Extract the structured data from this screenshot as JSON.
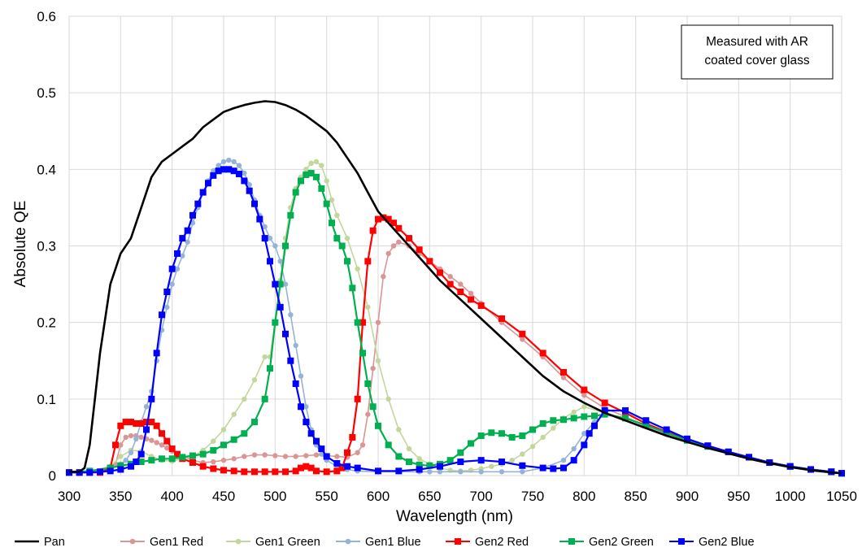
{
  "chart_data": {
    "type": "line",
    "title": "",
    "xlabel": "Wavelength (nm)",
    "ylabel": "Absolute QE",
    "xlim": [
      300,
      1050
    ],
    "ylim": [
      0,
      0.6
    ],
    "x_ticks": [
      300,
      350,
      400,
      450,
      500,
      550,
      600,
      650,
      700,
      750,
      800,
      850,
      900,
      950,
      1000,
      1050
    ],
    "x_tick_labels": [
      "300",
      "350",
      "400",
      "450",
      "500",
      "550",
      "600",
      "650",
      "700",
      "750",
      "800",
      "850",
      "900",
      "950",
      "1000",
      "1050"
    ],
    "y_ticks": [
      0,
      0.1,
      0.2,
      0.3,
      0.4,
      0.5,
      0.6
    ],
    "y_tick_labels": [
      "0",
      "0.1",
      "0.2",
      "0.3",
      "0.4",
      "0.5",
      "0.6"
    ],
    "grid": true,
    "legend_position": "bottom",
    "annotation": [
      "Measured with AR",
      "coated cover glass"
    ],
    "series": [
      {
        "name": "Pan",
        "color": "#000000",
        "marker": "none",
        "x": [
          300,
          305,
          310,
          315,
          320,
          325,
          330,
          340,
          345,
          350,
          360,
          370,
          380,
          390,
          400,
          410,
          420,
          430,
          440,
          450,
          460,
          470,
          480,
          490,
          500,
          510,
          520,
          530,
          540,
          550,
          560,
          570,
          580,
          590,
          600,
          620,
          640,
          660,
          680,
          700,
          720,
          740,
          760,
          780,
          800,
          820,
          840,
          860,
          880,
          900,
          920,
          940,
          960,
          980,
          1000,
          1020,
          1040,
          1050
        ],
        "y": [
          0.005,
          0.005,
          0.005,
          0.01,
          0.04,
          0.1,
          0.16,
          0.25,
          0.27,
          0.29,
          0.31,
          0.35,
          0.39,
          0.41,
          0.42,
          0.43,
          0.44,
          0.455,
          0.465,
          0.475,
          0.48,
          0.484,
          0.487,
          0.489,
          0.488,
          0.484,
          0.478,
          0.47,
          0.46,
          0.45,
          0.435,
          0.415,
          0.395,
          0.37,
          0.345,
          0.315,
          0.285,
          0.255,
          0.23,
          0.205,
          0.18,
          0.155,
          0.13,
          0.11,
          0.095,
          0.082,
          0.072,
          0.062,
          0.052,
          0.044,
          0.036,
          0.029,
          0.022,
          0.016,
          0.011,
          0.007,
          0.004,
          0.003
        ]
      },
      {
        "name": "Gen1 Red",
        "color": "#d99694",
        "marker": "circle",
        "x": [
          300,
          310,
          320,
          330,
          340,
          345,
          350,
          355,
          360,
          365,
          370,
          375,
          380,
          385,
          390,
          395,
          400,
          410,
          420,
          430,
          440,
          450,
          460,
          470,
          480,
          490,
          500,
          510,
          520,
          530,
          540,
          550,
          560,
          570,
          580,
          585,
          590,
          595,
          600,
          605,
          610,
          615,
          620,
          630,
          640,
          650,
          660,
          670,
          680,
          690,
          700,
          720,
          740,
          760,
          780,
          800,
          820,
          840,
          860,
          880,
          900,
          920,
          940,
          960,
          980,
          1000,
          1020,
          1040,
          1050
        ],
        "y": [
          0.004,
          0.004,
          0.004,
          0.004,
          0.006,
          0.015,
          0.04,
          0.05,
          0.052,
          0.052,
          0.05,
          0.048,
          0.046,
          0.043,
          0.04,
          0.036,
          0.032,
          0.025,
          0.02,
          0.017,
          0.018,
          0.02,
          0.022,
          0.025,
          0.027,
          0.027,
          0.026,
          0.025,
          0.025,
          0.026,
          0.027,
          0.026,
          0.025,
          0.024,
          0.03,
          0.04,
          0.08,
          0.14,
          0.2,
          0.26,
          0.29,
          0.3,
          0.305,
          0.3,
          0.29,
          0.28,
          0.27,
          0.26,
          0.25,
          0.238,
          0.225,
          0.2,
          0.178,
          0.155,
          0.128,
          0.105,
          0.088,
          0.077,
          0.064,
          0.054,
          0.045,
          0.037,
          0.03,
          0.023,
          0.016,
          0.011,
          0.007,
          0.004,
          0.003
        ]
      },
      {
        "name": "Gen1 Green",
        "color": "#c3d69b",
        "marker": "circle",
        "x": [
          300,
          320,
          340,
          350,
          360,
          370,
          380,
          390,
          400,
          410,
          420,
          430,
          440,
          450,
          460,
          470,
          480,
          490,
          495,
          500,
          505,
          510,
          515,
          520,
          525,
          530,
          535,
          540,
          545,
          550,
          555,
          560,
          570,
          580,
          590,
          600,
          610,
          620,
          630,
          640,
          650,
          660,
          670,
          680,
          690,
          700,
          710,
          720,
          730,
          740,
          750,
          760,
          770,
          780,
          790,
          800,
          820,
          840,
          860,
          880,
          900,
          920,
          940,
          960,
          980,
          1000,
          1020,
          1040,
          1050
        ],
        "y": [
          0.004,
          0.006,
          0.012,
          0.025,
          0.033,
          0.032,
          0.025,
          0.02,
          0.019,
          0.022,
          0.025,
          0.033,
          0.045,
          0.06,
          0.08,
          0.1,
          0.125,
          0.155,
          0.155,
          0.2,
          0.255,
          0.31,
          0.35,
          0.375,
          0.39,
          0.4,
          0.408,
          0.41,
          0.405,
          0.385,
          0.36,
          0.34,
          0.31,
          0.27,
          0.22,
          0.15,
          0.1,
          0.06,
          0.035,
          0.022,
          0.015,
          0.01,
          0.007,
          0.006,
          0.007,
          0.009,
          0.012,
          0.015,
          0.02,
          0.028,
          0.038,
          0.05,
          0.062,
          0.075,
          0.083,
          0.09,
          0.082,
          0.075,
          0.065,
          0.055,
          0.046,
          0.038,
          0.03,
          0.023,
          0.016,
          0.011,
          0.007,
          0.004,
          0.003
        ]
      },
      {
        "name": "Gen1 Blue",
        "color": "#95b3d7",
        "marker": "circle",
        "x": [
          300,
          320,
          340,
          350,
          355,
          360,
          365,
          370,
          375,
          380,
          385,
          390,
          395,
          400,
          405,
          410,
          415,
          420,
          425,
          430,
          435,
          440,
          445,
          450,
          455,
          460,
          465,
          470,
          475,
          480,
          485,
          490,
          495,
          500,
          505,
          510,
          515,
          520,
          525,
          530,
          535,
          540,
          545,
          550,
          560,
          570,
          580,
          600,
          620,
          640,
          650,
          660,
          680,
          700,
          720,
          740,
          760,
          780,
          790,
          800,
          810,
          820,
          840,
          860,
          880,
          900,
          920,
          940,
          960,
          980,
          1000,
          1020,
          1040,
          1050
        ],
        "y": [
          0.004,
          0.006,
          0.01,
          0.015,
          0.02,
          0.03,
          0.048,
          0.07,
          0.09,
          0.11,
          0.15,
          0.19,
          0.22,
          0.25,
          0.27,
          0.287,
          0.305,
          0.33,
          0.35,
          0.37,
          0.385,
          0.398,
          0.405,
          0.41,
          0.412,
          0.41,
          0.405,
          0.395,
          0.38,
          0.36,
          0.34,
          0.325,
          0.31,
          0.3,
          0.28,
          0.25,
          0.21,
          0.17,
          0.13,
          0.09,
          0.06,
          0.04,
          0.028,
          0.02,
          0.012,
          0.008,
          0.006,
          0.005,
          0.005,
          0.005,
          0.005,
          0.005,
          0.005,
          0.005,
          0.005,
          0.005,
          0.01,
          0.02,
          0.035,
          0.055,
          0.07,
          0.08,
          0.075,
          0.065,
          0.055,
          0.046,
          0.038,
          0.03,
          0.023,
          0.016,
          0.011,
          0.007,
          0.004,
          0.003
        ]
      },
      {
        "name": "Gen2 Red",
        "color": "#ff0000",
        "marker": "square",
        "x": [
          300,
          310,
          320,
          330,
          340,
          345,
          350,
          355,
          360,
          365,
          370,
          375,
          380,
          385,
          390,
          395,
          400,
          405,
          410,
          420,
          430,
          440,
          450,
          460,
          470,
          480,
          490,
          500,
          510,
          520,
          525,
          530,
          535,
          540,
          550,
          560,
          565,
          570,
          575,
          580,
          585,
          590,
          595,
          600,
          605,
          610,
          615,
          620,
          630,
          640,
          650,
          660,
          670,
          680,
          690,
          700,
          720,
          740,
          760,
          780,
          800,
          820,
          840,
          860,
          880,
          900,
          920,
          940,
          960,
          980,
          1000,
          1020,
          1040,
          1050
        ],
        "y": [
          0.004,
          0.004,
          0.004,
          0.004,
          0.01,
          0.04,
          0.065,
          0.07,
          0.07,
          0.068,
          0.068,
          0.07,
          0.07,
          0.065,
          0.055,
          0.045,
          0.035,
          0.028,
          0.022,
          0.017,
          0.012,
          0.009,
          0.007,
          0.006,
          0.005,
          0.005,
          0.005,
          0.005,
          0.005,
          0.006,
          0.01,
          0.012,
          0.01,
          0.006,
          0.005,
          0.006,
          0.01,
          0.03,
          0.05,
          0.1,
          0.2,
          0.28,
          0.32,
          0.335,
          0.337,
          0.335,
          0.33,
          0.323,
          0.31,
          0.295,
          0.28,
          0.265,
          0.25,
          0.24,
          0.23,
          0.222,
          0.205,
          0.185,
          0.16,
          0.135,
          0.112,
          0.095,
          0.082,
          0.068,
          0.057,
          0.047,
          0.039,
          0.031,
          0.024,
          0.017,
          0.012,
          0.008,
          0.005,
          0.003
        ]
      },
      {
        "name": "Gen2 Green",
        "color": "#00b050",
        "marker": "square",
        "x": [
          300,
          320,
          340,
          350,
          360,
          370,
          380,
          390,
          400,
          410,
          420,
          430,
          440,
          450,
          460,
          470,
          480,
          490,
          495,
          500,
          505,
          510,
          515,
          520,
          525,
          530,
          535,
          540,
          545,
          550,
          555,
          560,
          565,
          570,
          575,
          580,
          585,
          590,
          595,
          600,
          610,
          620,
          630,
          640,
          650,
          660,
          670,
          680,
          690,
          700,
          710,
          720,
          730,
          740,
          750,
          760,
          770,
          780,
          790,
          800,
          810,
          820,
          840,
          860,
          880,
          900,
          920,
          940,
          960,
          980,
          1000,
          1020,
          1040,
          1050
        ],
        "y": [
          0.004,
          0.006,
          0.01,
          0.013,
          0.015,
          0.018,
          0.02,
          0.022,
          0.022,
          0.024,
          0.026,
          0.028,
          0.033,
          0.04,
          0.047,
          0.055,
          0.07,
          0.1,
          0.14,
          0.2,
          0.25,
          0.3,
          0.34,
          0.37,
          0.385,
          0.393,
          0.395,
          0.39,
          0.375,
          0.355,
          0.33,
          0.31,
          0.3,
          0.28,
          0.245,
          0.2,
          0.16,
          0.12,
          0.09,
          0.065,
          0.04,
          0.025,
          0.018,
          0.014,
          0.013,
          0.015,
          0.02,
          0.03,
          0.042,
          0.052,
          0.056,
          0.055,
          0.05,
          0.052,
          0.06,
          0.068,
          0.072,
          0.073,
          0.075,
          0.077,
          0.078,
          0.08,
          0.075,
          0.066,
          0.056,
          0.046,
          0.038,
          0.031,
          0.024,
          0.017,
          0.012,
          0.008,
          0.005,
          0.003
        ]
      },
      {
        "name": "Gen2 Blue",
        "color": "#0000ff",
        "marker": "square",
        "x": [
          300,
          310,
          320,
          330,
          340,
          350,
          360,
          365,
          370,
          375,
          380,
          385,
          390,
          395,
          400,
          405,
          410,
          415,
          420,
          425,
          430,
          435,
          440,
          445,
          450,
          455,
          460,
          465,
          470,
          475,
          480,
          485,
          490,
          495,
          500,
          505,
          510,
          515,
          520,
          525,
          530,
          535,
          540,
          545,
          550,
          560,
          570,
          580,
          600,
          620,
          640,
          660,
          680,
          700,
          720,
          740,
          760,
          770,
          780,
          790,
          800,
          805,
          810,
          820,
          840,
          860,
          880,
          900,
          920,
          940,
          960,
          980,
          1000,
          1020,
          1040,
          1050
        ],
        "y": [
          0.004,
          0.004,
          0.004,
          0.005,
          0.006,
          0.008,
          0.012,
          0.018,
          0.028,
          0.06,
          0.1,
          0.16,
          0.21,
          0.24,
          0.27,
          0.29,
          0.31,
          0.32,
          0.34,
          0.355,
          0.37,
          0.382,
          0.392,
          0.398,
          0.4,
          0.4,
          0.398,
          0.394,
          0.385,
          0.372,
          0.355,
          0.335,
          0.31,
          0.28,
          0.25,
          0.22,
          0.185,
          0.15,
          0.12,
          0.09,
          0.07,
          0.055,
          0.045,
          0.035,
          0.025,
          0.016,
          0.012,
          0.01,
          0.006,
          0.006,
          0.008,
          0.012,
          0.018,
          0.02,
          0.018,
          0.013,
          0.01,
          0.009,
          0.01,
          0.02,
          0.04,
          0.055,
          0.065,
          0.085,
          0.085,
          0.072,
          0.06,
          0.048,
          0.039,
          0.031,
          0.024,
          0.017,
          0.012,
          0.008,
          0.005,
          0.003
        ]
      }
    ]
  }
}
